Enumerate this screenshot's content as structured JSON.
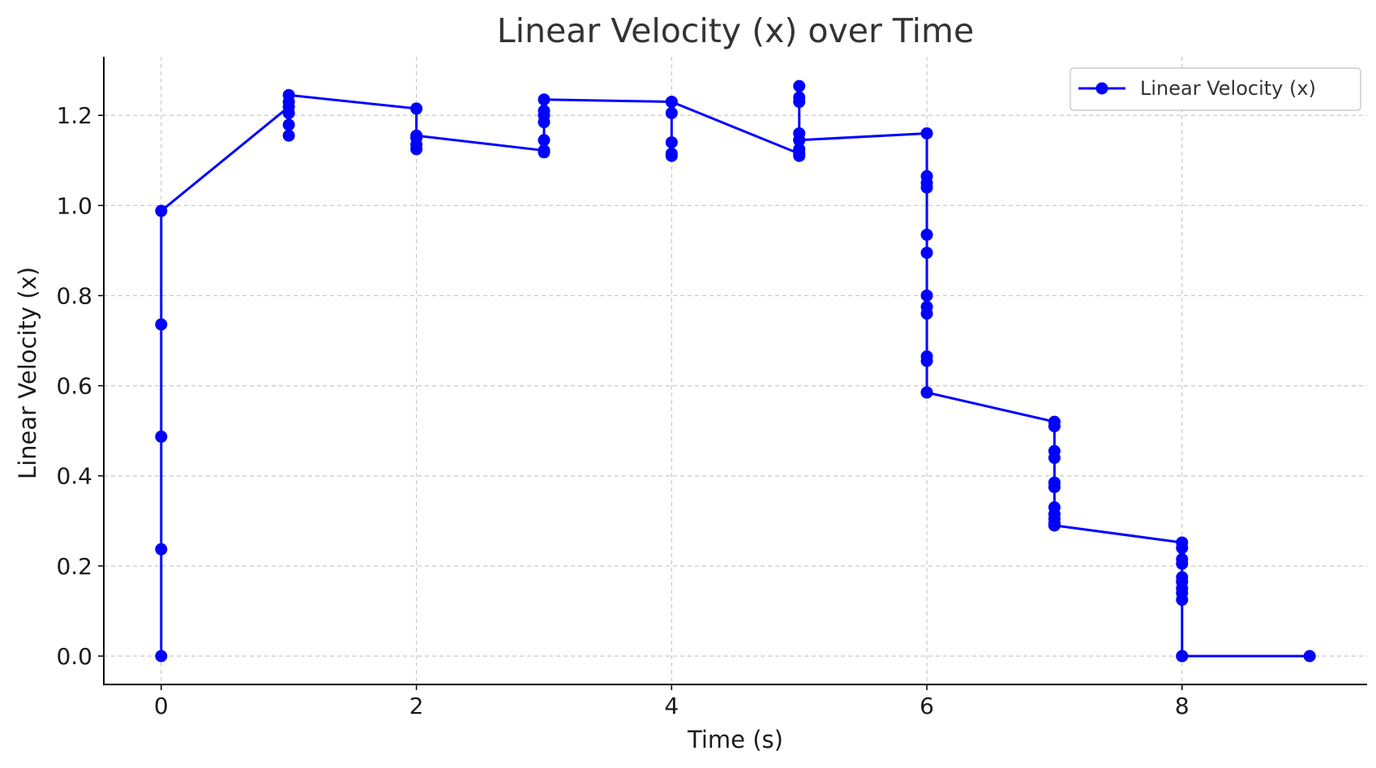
{
  "chart_data": {
    "type": "line",
    "title": "Linear Velocity (x) over Time",
    "xlabel": "Time (s)",
    "ylabel": "Linear Velocity (x)",
    "xlim": [
      -0.45,
      9.45
    ],
    "ylim": [
      -0.063,
      1.33
    ],
    "xticks": [
      0,
      2,
      4,
      6,
      8
    ],
    "xtick_labels": [
      "0",
      "2",
      "4",
      "6",
      "8"
    ],
    "yticks": [
      0.0,
      0.2,
      0.4,
      0.6,
      0.8,
      1.0,
      1.2
    ],
    "ytick_labels": [
      "0.0",
      "0.2",
      "0.4",
      "0.6",
      "0.8",
      "1.0",
      "1.2"
    ],
    "grid": true,
    "legend_position": "top-right",
    "color": "#0000ff",
    "series": [
      {
        "name": "Linear Velocity (x)",
        "x": [
          0,
          0,
          0,
          0,
          0,
          1,
          1,
          1,
          1,
          1,
          1,
          2,
          2,
          2,
          2,
          2,
          3,
          3,
          3,
          3,
          3,
          3,
          3,
          4,
          4,
          4,
          4,
          4,
          4,
          5,
          5,
          5,
          5,
          5,
          5,
          5,
          5,
          5,
          6,
          6,
          6,
          6,
          6,
          6,
          6,
          6,
          6,
          6,
          6,
          6,
          6,
          7,
          7,
          7,
          7,
          7,
          7,
          7,
          7,
          7,
          7,
          7,
          7,
          8,
          8,
          8,
          8,
          8,
          8,
          8,
          8,
          8,
          8,
          8,
          9
        ],
        "y": [
          0.0,
          0.237,
          0.487,
          0.736,
          0.988,
          1.219,
          1.155,
          1.179,
          1.205,
          1.23,
          1.245,
          1.215,
          1.125,
          1.135,
          1.15,
          1.155,
          1.122,
          1.118,
          1.145,
          1.185,
          1.2,
          1.21,
          1.235,
          1.23,
          1.115,
          1.11,
          1.14,
          1.205,
          1.23,
          1.115,
          1.11,
          1.125,
          1.145,
          1.16,
          1.23,
          1.24,
          1.265,
          1.145,
          1.16,
          1.065,
          1.05,
          1.04,
          0.935,
          0.895,
          0.8,
          0.775,
          0.76,
          0.665,
          0.655,
          0.585,
          0.585,
          0.52,
          0.51,
          0.455,
          0.44,
          0.385,
          0.375,
          0.33,
          0.315,
          0.305,
          0.295,
          0.29,
          0.29,
          0.252,
          0.24,
          0.215,
          0.205,
          0.175,
          0.165,
          0.15,
          0.14,
          0.125,
          0.0,
          0.0,
          0.0
        ]
      }
    ]
  }
}
